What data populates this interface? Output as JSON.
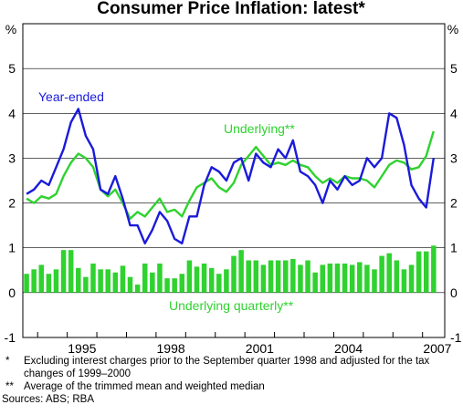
{
  "chart_data": {
    "type": "bar+line",
    "title": "Consumer Price Inflation: latest*",
    "y_unit_left": "%",
    "y_unit_right": "%",
    "ylim": [
      -1,
      6
    ],
    "yticks": [
      -1,
      0,
      1,
      2,
      3,
      4,
      5
    ],
    "xlim": [
      1993.5,
      2007.75
    ],
    "xticks": [
      1995,
      1998,
      2001,
      2004,
      2007
    ],
    "xtick_labels": [
      "1995",
      "1998",
      "2001",
      "2004",
      "2007"
    ],
    "grid": "horizontal",
    "series_labels": {
      "year_ended": "Year-ended",
      "underlying": "Underlying**",
      "underlying_quarterly": "Underlying quarterly**"
    },
    "colors": {
      "year_ended": "#1a1adb",
      "underlying": "#2fd22f",
      "underlying_quarterly": "#2fd22f",
      "axis": "#000000",
      "grid": "#000000"
    },
    "start_quarter": "1993-Q3",
    "series": [
      {
        "key": "year_ended",
        "kind": "line",
        "values": [
          2.2,
          2.3,
          2.5,
          2.4,
          2.8,
          3.2,
          3.8,
          4.1,
          3.5,
          3.2,
          2.3,
          2.2,
          2.6,
          2.1,
          1.5,
          1.5,
          1.1,
          1.4,
          1.8,
          1.6,
          1.2,
          1.1,
          1.7,
          1.7,
          2.4,
          2.8,
          2.7,
          2.5,
          2.9,
          3.0,
          2.5,
          3.1,
          2.9,
          2.8,
          3.2,
          3.0,
          3.4,
          2.7,
          2.6,
          2.4,
          2.0,
          2.5,
          2.3,
          2.6,
          2.4,
          2.5,
          3.0,
          2.8,
          3.0,
          4.0,
          3.9,
          3.3,
          2.4,
          2.1,
          1.9,
          3.0
        ]
      },
      {
        "key": "underlying",
        "kind": "line",
        "values": [
          2.1,
          2.0,
          2.15,
          2.1,
          2.2,
          2.6,
          2.9,
          3.1,
          3.0,
          2.8,
          2.3,
          2.15,
          2.3,
          2.0,
          1.65,
          1.8,
          1.7,
          1.9,
          2.1,
          1.8,
          1.85,
          1.7,
          2.05,
          2.35,
          2.45,
          2.55,
          2.35,
          2.25,
          2.45,
          2.85,
          3.05,
          3.25,
          3.05,
          2.85,
          2.9,
          2.85,
          2.95,
          2.85,
          2.8,
          2.6,
          2.45,
          2.55,
          2.45,
          2.6,
          2.55,
          2.55,
          2.5,
          2.35,
          2.6,
          2.85,
          2.95,
          2.9,
          2.75,
          2.8,
          3.05,
          3.6
        ]
      },
      {
        "key": "underlying_quarterly",
        "kind": "bar",
        "values": [
          0.42,
          0.52,
          0.62,
          0.42,
          0.52,
          0.95,
          0.95,
          0.55,
          0.35,
          0.65,
          0.52,
          0.52,
          0.45,
          0.6,
          0.35,
          0.18,
          0.65,
          0.45,
          0.65,
          0.32,
          0.32,
          0.42,
          0.72,
          0.58,
          0.65,
          0.55,
          0.42,
          0.52,
          0.82,
          0.95,
          0.72,
          0.72,
          0.62,
          0.72,
          0.72,
          0.72,
          0.75,
          0.62,
          0.72,
          0.45,
          0.62,
          0.65,
          0.65,
          0.65,
          0.62,
          0.68,
          0.62,
          0.52,
          0.82,
          0.88,
          0.72,
          0.52,
          0.62,
          0.92,
          0.92,
          1.05
        ]
      }
    ],
    "footnotes": [
      {
        "mark": "*",
        "text": "Excluding interest charges prior to the September quarter 1998 and adjusted for the tax changes of 1999–2000"
      },
      {
        "mark": "**",
        "text": "Average of the trimmed mean and weighted median"
      }
    ],
    "sources": "Sources: ABS; RBA"
  }
}
